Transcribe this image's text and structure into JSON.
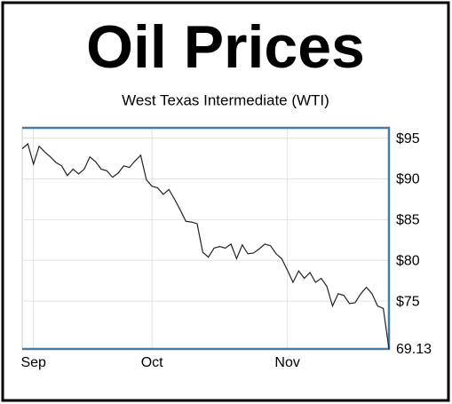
{
  "chart_data": {
    "type": "line",
    "title": "Oil Prices",
    "subtitle": "West Texas Intermediate (WTI)",
    "x": [
      0,
      1,
      2,
      3,
      4,
      5,
      6,
      7,
      8,
      9,
      10,
      11,
      12,
      13,
      14,
      15,
      16,
      17,
      18,
      19,
      20,
      21,
      22,
      23,
      24,
      25,
      26,
      27,
      28,
      29,
      30,
      31,
      32,
      33,
      34,
      35,
      36,
      37,
      38,
      39,
      40,
      41,
      42,
      43,
      44,
      45,
      46,
      47,
      48,
      49,
      50,
      51,
      52,
      53,
      54,
      55,
      56,
      57,
      58,
      59,
      60,
      61,
      62,
      63,
      64,
      65
    ],
    "series": [
      {
        "color": "#222222",
        "values": [
          93.7,
          94.3,
          91.8,
          94.0,
          93.3,
          92.7,
          92.0,
          91.6,
          90.4,
          91.2,
          90.6,
          91.2,
          92.7,
          92.1,
          91.2,
          91.0,
          90.2,
          90.7,
          91.6,
          91.4,
          92.2,
          92.9,
          89.9,
          89.1,
          88.9,
          88.1,
          88.7,
          87.5,
          86.2,
          84.8,
          84.7,
          84.5,
          81.0,
          80.4,
          81.5,
          81.7,
          81.5,
          82.0,
          80.2,
          81.9,
          80.8,
          80.9,
          81.4,
          82.0,
          81.8,
          80.8,
          80.2,
          78.8,
          77.3,
          78.7,
          77.8,
          78.5,
          77.3,
          77.8,
          76.8,
          74.4,
          75.9,
          75.7,
          74.7,
          74.8,
          75.9,
          76.7,
          75.9,
          74.4,
          74.1,
          69.13
        ]
      }
    ],
    "xlim": [
      0,
      65
    ],
    "xticks": [
      {
        "value": 2,
        "label": "Sep"
      },
      {
        "value": 23,
        "label": "Oct"
      },
      {
        "value": 47,
        "label": "Nov"
      }
    ],
    "ylim": [
      69.13,
      96.26
    ],
    "yticks": [
      {
        "value": 95,
        "label": "$95"
      },
      {
        "value": 90,
        "label": "$90"
      },
      {
        "value": 85,
        "label": "$85"
      },
      {
        "value": 80,
        "label": "$80"
      },
      {
        "value": 75,
        "label": "$75"
      },
      69.13
    ],
    "grid": true,
    "frame_color": "#4a7aa8"
  }
}
